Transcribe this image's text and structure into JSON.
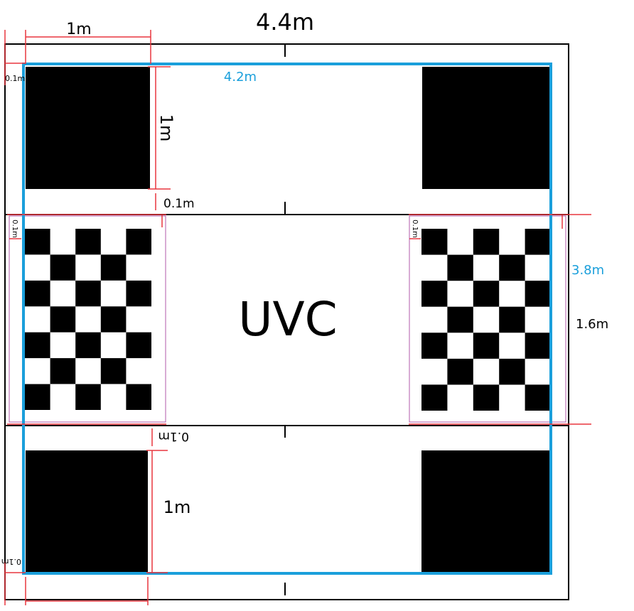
{
  "labels": {
    "overall_width": "4.4m",
    "inner_width": "4.2m",
    "inner_height": "3.8m",
    "middle_band_height": "1.6m",
    "square_top_width": "1m",
    "square_top_height": "1m",
    "square_bottom_height": "1m",
    "gap_top": "0.1m",
    "gap_bottom": "0.1m",
    "edge_top_left": "0.1m",
    "edge_bottom_left": "0.1m",
    "edge_left_mid": "0.1m",
    "edge_right_mid": "0.1m",
    "center": "UVC"
  },
  "colors": {
    "inner_frame": "#1a9fdb",
    "dimension_lines": "#e8363e",
    "squares": "#000000",
    "outline": "#000000"
  },
  "checkerboard": {
    "rows": 7,
    "cols": 5
  }
}
